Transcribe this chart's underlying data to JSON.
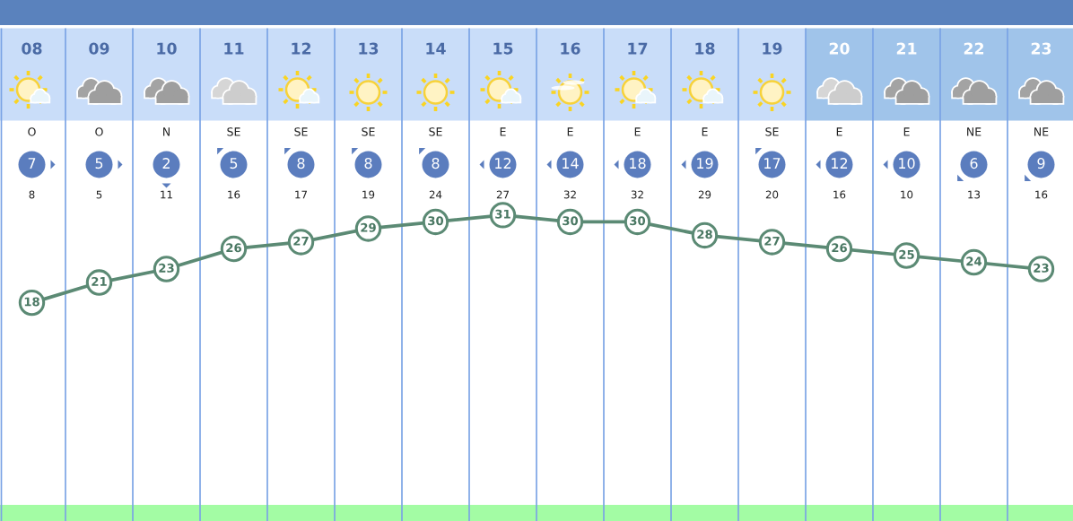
{
  "chart_data": {
    "type": "line",
    "categories": [
      "08",
      "09",
      "10",
      "11",
      "12",
      "13",
      "14",
      "15",
      "16",
      "17",
      "18",
      "19",
      "20",
      "21",
      "22",
      "23"
    ],
    "series": [
      {
        "values": [
          18,
          21,
          23,
          26,
          27,
          29,
          30,
          31,
          30,
          30,
          28,
          27,
          26,
          25,
          24,
          23
        ],
        "color": "#5b8a74"
      }
    ],
    "tick_labels": "x",
    "marker": "circle",
    "line_style": "solid",
    "data_labels": true,
    "annotations": [
      "O",
      "O",
      "N",
      "SE",
      "SE",
      "SE",
      "SE",
      "E",
      "E",
      "E",
      "E",
      "SE",
      "E",
      "E",
      "NE",
      "NE",
      "7",
      "5",
      "2",
      "5",
      "8",
      "8",
      "8",
      "12",
      "14",
      "18",
      "19",
      "17",
      "12",
      "10",
      "6",
      "9",
      "8",
      "5",
      "11",
      "16",
      "17",
      "19",
      "24",
      "27",
      "32",
      "32",
      "29",
      "20",
      "16",
      "10",
      "13",
      "16"
    ]
  }
}
